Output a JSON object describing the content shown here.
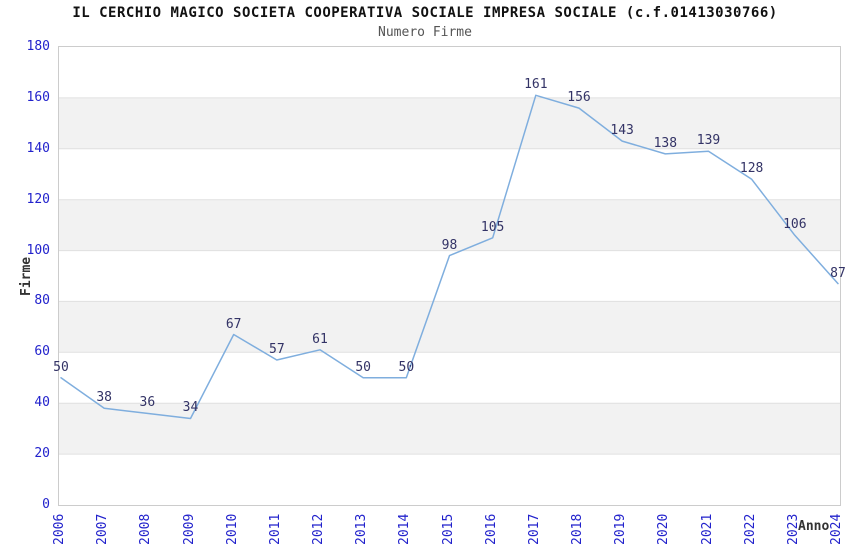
{
  "chart_data": {
    "type": "line",
    "title": "IL CERCHIO MAGICO SOCIETA COOPERATIVA SOCIALE IMPRESA SOCIALE (c.f.01413030766)",
    "subtitle": "Numero Firme",
    "xlabel": "Anno",
    "ylabel": "Firme",
    "categories": [
      "2006",
      "2007",
      "2008",
      "2009",
      "2010",
      "2011",
      "2012",
      "2013",
      "2014",
      "2015",
      "2016",
      "2017",
      "2018",
      "2019",
      "2020",
      "2021",
      "2022",
      "2023",
      "2024"
    ],
    "values": [
      50,
      38,
      36,
      34,
      67,
      57,
      61,
      50,
      50,
      98,
      105,
      161,
      156,
      143,
      138,
      139,
      128,
      106,
      87
    ],
    "ylim": [
      0,
      180
    ],
    "ytick_step": 20,
    "grid": "horizontal",
    "alternating_bands": true,
    "legend": "none",
    "colors": {
      "background": "#ffffff",
      "title": "#111111",
      "subtitle": "#555555",
      "axis_title": "#333333",
      "tick_label": "#2222cc",
      "point_label": "#333366",
      "line": "#7faede",
      "band": "#f2f2f2",
      "gridline": "#e0e0e0",
      "plot_border": "#cccccc"
    }
  }
}
